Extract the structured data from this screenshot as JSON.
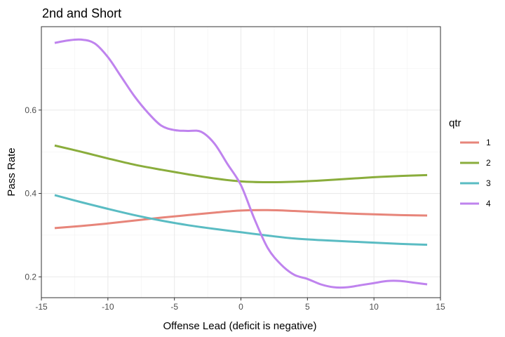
{
  "chart_data": {
    "type": "line",
    "title": "2nd and Short",
    "xlabel": "Offense Lead (deficit is negative)",
    "ylabel": "Pass Rate",
    "xlim": [
      -15,
      15
    ],
    "ylim": [
      0.15,
      0.8
    ],
    "x_ticks": [
      -15,
      -10,
      -5,
      0,
      5,
      10,
      15
    ],
    "x_tick_labels": [
      "-15",
      "-10",
      "-5",
      "0",
      "5",
      "10",
      "15"
    ],
    "y_ticks": [
      0.2,
      0.4,
      0.6
    ],
    "y_tick_labels": [
      "0.2",
      "0.4",
      "0.6"
    ],
    "grid": true,
    "legend": {
      "title": "qtr",
      "position": "right"
    },
    "series": [
      {
        "name": "1",
        "color": "#E7857A",
        "x": [
          -14,
          -12,
          -10,
          -8,
          -6,
          -4,
          -2,
          0,
          2,
          4,
          6,
          8,
          10,
          12,
          14
        ],
        "y": [
          0.317,
          0.322,
          0.328,
          0.335,
          0.342,
          0.348,
          0.354,
          0.359,
          0.36,
          0.358,
          0.355,
          0.352,
          0.35,
          0.348,
          0.347
        ]
      },
      {
        "name": "2",
        "color": "#8AAD3C",
        "x": [
          -14,
          -12,
          -10,
          -8,
          -6,
          -4,
          -2,
          0,
          2,
          4,
          6,
          8,
          10,
          12,
          14
        ],
        "y": [
          0.515,
          0.5,
          0.484,
          0.469,
          0.457,
          0.446,
          0.436,
          0.429,
          0.427,
          0.428,
          0.431,
          0.435,
          0.439,
          0.442,
          0.444
        ]
      },
      {
        "name": "3",
        "color": "#5ABCC3",
        "x": [
          -14,
          -12,
          -10,
          -8,
          -6,
          -4,
          -2,
          0,
          2,
          4,
          6,
          8,
          10,
          12,
          14
        ],
        "y": [
          0.396,
          0.379,
          0.363,
          0.348,
          0.335,
          0.324,
          0.315,
          0.307,
          0.299,
          0.292,
          0.288,
          0.285,
          0.282,
          0.279,
          0.277
        ]
      },
      {
        "name": "4",
        "color": "#BF83EE",
        "x": [
          -14,
          -13,
          -12,
          -11,
          -10,
          -9,
          -8,
          -7,
          -6,
          -5,
          -4,
          -3,
          -2,
          -1,
          0,
          1,
          2,
          3,
          4,
          5,
          6,
          7,
          8,
          9,
          10,
          11,
          12,
          13,
          14
        ],
        "y": [
          0.761,
          0.767,
          0.769,
          0.76,
          0.727,
          0.68,
          0.633,
          0.594,
          0.563,
          0.552,
          0.55,
          0.548,
          0.52,
          0.47,
          0.42,
          0.34,
          0.27,
          0.23,
          0.205,
          0.195,
          0.182,
          0.175,
          0.175,
          0.18,
          0.185,
          0.19,
          0.19,
          0.186,
          0.182
        ]
      }
    ]
  }
}
